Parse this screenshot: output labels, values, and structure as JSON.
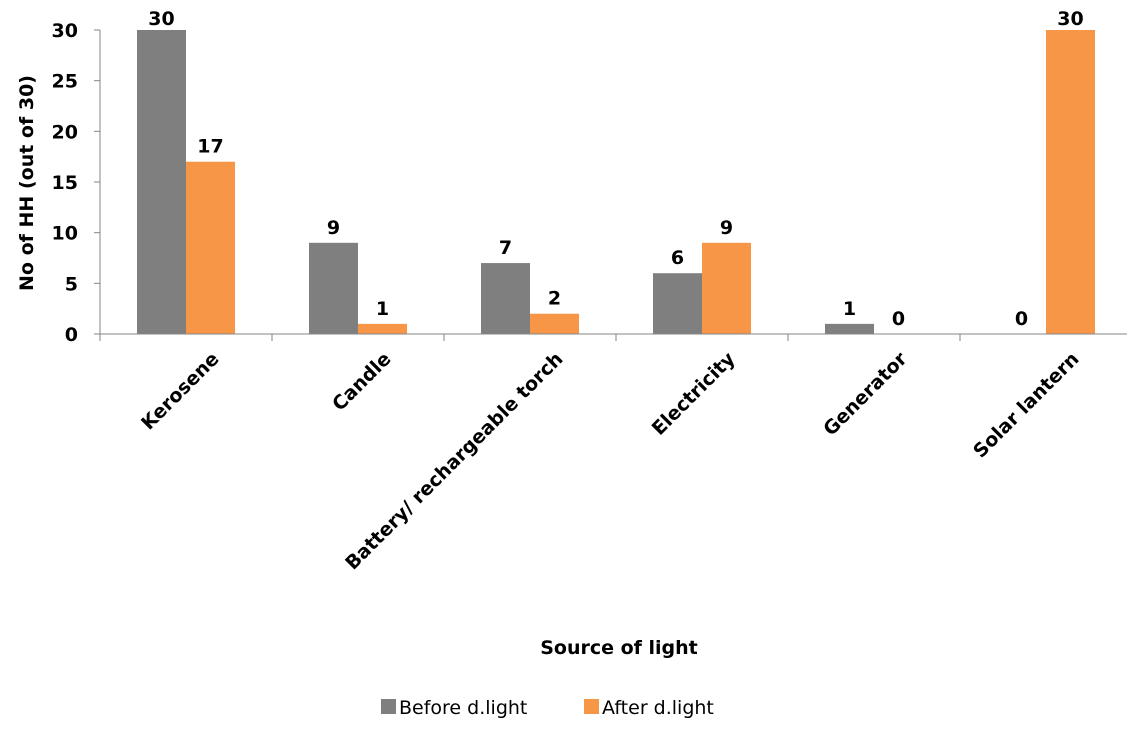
{
  "chart_data": {
    "type": "bar",
    "title": "",
    "xlabel": "Source of light",
    "ylabel": "No of HH (out of 30)",
    "categories": [
      "Kerosene",
      "Candle",
      "Battery/ rechargeable torch",
      "Electricity",
      "Generator",
      "Solar lantern"
    ],
    "series": [
      {
        "name": "Before d.light",
        "values": [
          30,
          9,
          7,
          6,
          1,
          0
        ],
        "color": "#7f7f7f"
      },
      {
        "name": "After d.light",
        "values": [
          17,
          1,
          2,
          9,
          0,
          30
        ],
        "color": "#f79646"
      }
    ],
    "ylim": [
      0,
      30
    ],
    "yticks": [
      0,
      5,
      10,
      15,
      20,
      25,
      30
    ],
    "grid": false,
    "legend_position": "bottom"
  }
}
